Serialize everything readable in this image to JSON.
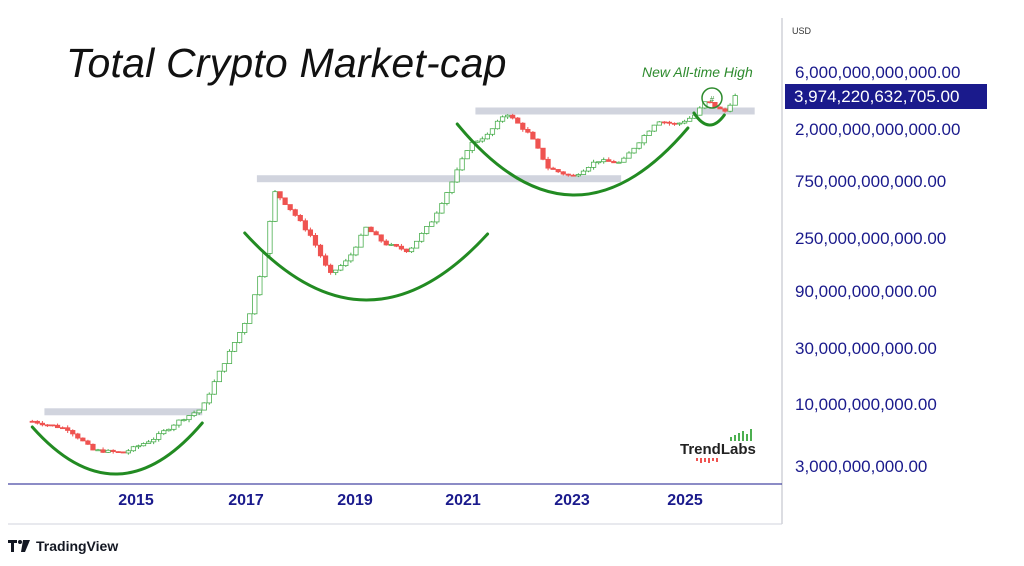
{
  "app": {
    "platform": "TradingView",
    "currency": "USD",
    "watermark": "TrendLabs"
  },
  "chart_data": {
    "type": "candlestick",
    "title": "Total Crypto Market-cap",
    "y_scale": "log",
    "y_tick_labels": [
      "6,000,000,000,000.00",
      "2,000,000,000,000.00",
      "750,000,000,000.00",
      "250,000,000,000.00",
      "90,000,000,000.00",
      "30,000,000,000.00",
      "10,000,000,000.00",
      "3,000,000,000.00"
    ],
    "y_ticks": [
      6000000000000,
      2000000000000,
      750000000000,
      250000000000,
      90000000000,
      30000000000,
      10000000000,
      3000000000
    ],
    "x_tick_labels": [
      "2015",
      "2017",
      "2019",
      "2021",
      "2023",
      "2025"
    ],
    "x_ticks": [
      2015,
      2017,
      2019,
      2021,
      2023,
      2025
    ],
    "current_price_label": "3,974,220,632,705.00",
    "current_price": 3974220632705,
    "annotations": [
      "New All-time High"
    ],
    "series": [
      {
        "x": [
          2014.0,
          2014.6,
          2015.0,
          2015.5,
          2016.0,
          2016.4,
          2016.8,
          2017.0,
          2017.3,
          2017.6,
          2017.8,
          2018.0,
          2018.3,
          2018.6,
          2018.9,
          2019.2,
          2019.5,
          2019.8,
          2020.2,
          2020.6,
          2020.9,
          2021.2,
          2021.5,
          2021.8,
          2022.2,
          2022.5,
          2022.9,
          2023.3,
          2023.7,
          2024.0,
          2024.3,
          2024.6,
          2024.9,
          2025.1,
          2025.4,
          2025.6
        ],
        "values": [
          7000000000,
          6000000000,
          4000000000,
          3800000000,
          5000000000,
          7000000000,
          9000000000,
          15000000000,
          30000000000,
          60000000000,
          150000000000,
          600000000000,
          400000000000,
          250000000000,
          120000000000,
          160000000000,
          300000000000,
          220000000000,
          190000000000,
          350000000000,
          700000000000,
          1500000000000,
          1800000000000,
          2800000000000,
          1800000000000,
          950000000000,
          800000000000,
          1100000000000,
          1050000000000,
          1600000000000,
          2400000000000,
          2200000000000,
          2600000000000,
          3500000000000,
          2800000000000,
          3974220632705
        ]
      }
    ],
    "resistance_levels": [
      8500000000,
      780000000000,
      2900000000000
    ],
    "cup_patterns": [
      {
        "from": 2014.0,
        "to": 2016.8
      },
      {
        "from": 2017.5,
        "to": 2021.5
      },
      {
        "from": 2021.0,
        "to": 2024.8
      },
      {
        "from": 2024.9,
        "to": 2025.4
      }
    ],
    "colors": {
      "up": "#4caf50",
      "down": "#ef5350",
      "cup": "#228b22",
      "resistance_band": "#c5c9d6",
      "axis_text": "#1a1a8c",
      "price_box": "#1a1a8c"
    },
    "grid": false,
    "legend": "none"
  }
}
